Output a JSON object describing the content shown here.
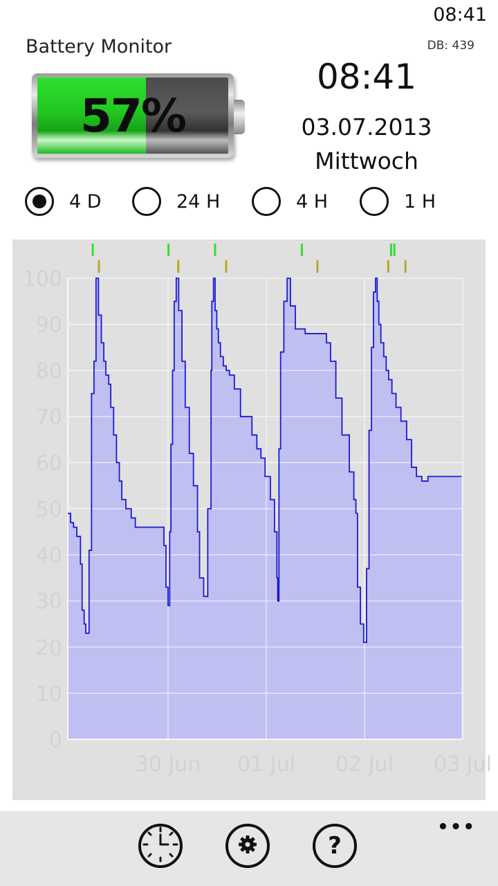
{
  "status_bar": {
    "time": "08:41"
  },
  "header": {
    "title": "Battery Monitor",
    "db_count": "DB: 439"
  },
  "battery": {
    "level_percent": 57,
    "label": "57%",
    "fill_color": "#22c722"
  },
  "clock": {
    "time": "08:41",
    "date": "03.07.2013",
    "day": "Mittwoch"
  },
  "range_options": [
    {
      "label": "4 D",
      "selected": true
    },
    {
      "label": "24 H",
      "selected": false
    },
    {
      "label": "4 H",
      "selected": false
    },
    {
      "label": "1 H",
      "selected": false
    }
  ],
  "chart_data": {
    "type": "area",
    "title": "",
    "xlabel": "",
    "ylabel": "",
    "ylim": [
      0,
      100
    ],
    "y_ticks": [
      "0",
      "10",
      "20",
      "30",
      "40",
      "50",
      "60",
      "70",
      "80",
      "90",
      "100"
    ],
    "x_tick_labels": [
      "30 Jun",
      "01 Jul",
      "02 Jul",
      "03 Jul"
    ],
    "x_range_hours": [
      0,
      96.5
    ],
    "grid": true,
    "line_color": "#1a1ad6",
    "fill_color": "#bfbff2",
    "series": [
      {
        "name": "",
        "x_hours": [
          0,
          0.7,
          1.4,
          2.2,
          3.1,
          3.5,
          4.0,
          4.4,
          5.2,
          5.8,
          6.4,
          6.9,
          7.5,
          8.2,
          8.8,
          9.3,
          10.0,
          10.5,
          11.2,
          11.9,
          12.6,
          13.2,
          14.2,
          15.5,
          16.5,
          19.0,
          22.0,
          23.5,
          24.0,
          24.5,
          24.9,
          25.2,
          25.6,
          26.0,
          26.5,
          27.1,
          27.9,
          28.7,
          29.7,
          30.7,
          31.7,
          32.2,
          33.2,
          34.2,
          35.0,
          35.2,
          35.6,
          36.0,
          36.4,
          36.8,
          37.3,
          38.0,
          38.7,
          39.5,
          40.7,
          42.2,
          45.0,
          46.2,
          47.2,
          48.2,
          49.5,
          50.5,
          51.1,
          51.3,
          51.6,
          52.0,
          52.8,
          53.6,
          54.4,
          55.6,
          58.0,
          60.5,
          62.2,
          63.2,
          64.2,
          65.5,
          67.0,
          68.8,
          69.9,
          70.4,
          70.8,
          71.5,
          72.3,
          73.0,
          73.6,
          74.2,
          74.7,
          75.2,
          75.6,
          76.0,
          76.5,
          77.2,
          77.8,
          78.4,
          79.2,
          80.2,
          81.4,
          82.8,
          84.0,
          85.2,
          86.5,
          88.0,
          89.2,
          90.5,
          91.6,
          92.5,
          93.3,
          93.8,
          94.4,
          94.9,
          95.5,
          96.2
        ],
        "values": [
          49,
          47,
          46,
          44,
          38,
          28,
          25,
          23,
          41,
          75,
          82,
          100,
          92,
          86,
          82,
          79,
          77,
          72,
          66,
          60,
          56,
          52,
          50,
          48,
          46,
          46,
          46,
          42,
          33,
          29,
          45,
          64,
          80,
          95,
          100,
          93,
          82,
          72,
          62,
          55,
          45,
          35,
          31,
          50,
          80,
          95,
          100,
          93,
          89,
          86,
          83,
          81,
          80,
          79,
          76,
          70,
          66,
          63,
          61,
          57,
          52,
          45,
          35,
          30,
          63,
          84,
          95,
          100,
          94,
          89,
          88,
          88,
          88,
          86,
          82,
          74,
          66,
          58,
          52,
          49,
          33,
          25,
          21,
          37,
          67,
          85,
          97,
          100,
          95,
          90,
          86,
          83,
          80,
          78,
          75,
          72,
          69,
          65,
          59,
          57,
          56,
          57,
          57,
          57,
          57,
          57,
          57,
          57,
          57,
          57,
          57,
          57
        ],
        "plug_marks_hours": [
          6.1,
          24.6,
          36.0,
          57.2,
          79.0,
          79.8
        ],
        "full_marks_hours": [
          7.6,
          27.0,
          38.7,
          61.0,
          78.3,
          82.5
        ]
      }
    ]
  },
  "app_bar": {
    "buttons": [
      {
        "icon": "clock-icon"
      },
      {
        "icon": "gear-icon"
      },
      {
        "icon": "help-icon",
        "glyph": "?"
      }
    ],
    "more_glyph": "•••"
  }
}
